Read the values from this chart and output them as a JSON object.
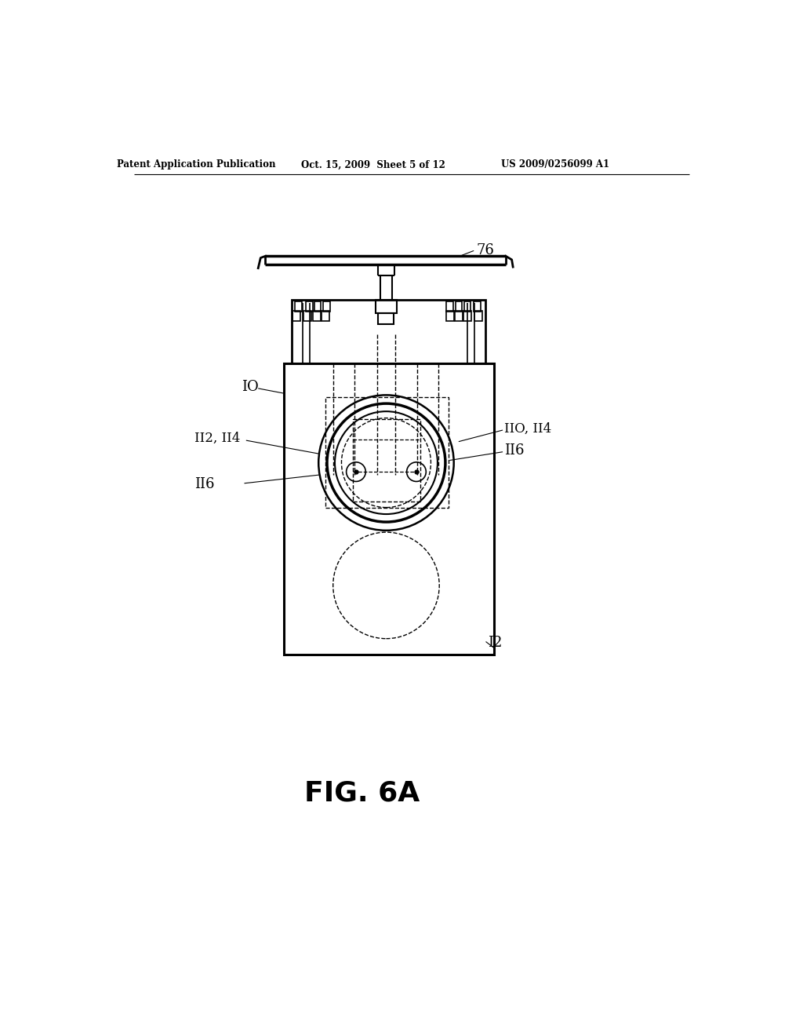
{
  "bg_color": "#ffffff",
  "line_color": "#000000",
  "header_left": "Patent Application Publication",
  "header_mid": "Oct. 15, 2009  Sheet 5 of 12",
  "header_right": "US 2009/0256099 A1",
  "fig_label": "FIG. 6A",
  "ref_76": "76",
  "ref_10": "IO",
  "ref_112_114": "II2, II4",
  "ref_110_114": "IIO, II4",
  "ref_116a": "II6",
  "ref_116b": "II6",
  "ref_12": "I2"
}
